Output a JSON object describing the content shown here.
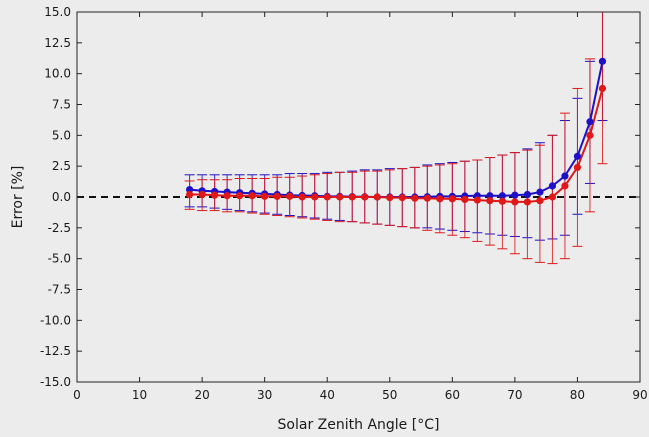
{
  "chart_data": {
    "type": "line",
    "title": "",
    "xlabel": "Solar Zenith Angle [°C]",
    "ylabel": "Error [%]",
    "xlim": [
      0,
      90
    ],
    "ylim": [
      -15,
      15
    ],
    "x_ticks": [
      0,
      10,
      20,
      30,
      40,
      50,
      60,
      70,
      80,
      90
    ],
    "y_ticks": [
      15,
      12.5,
      10,
      7.5,
      5,
      2.5,
      0,
      -2.5,
      -5,
      -7.5,
      -10,
      -12.5,
      -15
    ],
    "x_tick_labels": [
      "0",
      "10",
      "20",
      "30",
      "40",
      "50",
      "60",
      "70",
      "80",
      "90"
    ],
    "y_tick_labels": [
      "15.0",
      "12.5",
      "10.0",
      "7.5",
      "5.0",
      "2.5",
      "0.0",
      "-2.5",
      "-5.0",
      "-7.5",
      "-10.0",
      "-12.5",
      "-15.0"
    ],
    "grid": false,
    "reference_line": {
      "y": 0,
      "style": "dashed",
      "color": "#111111"
    },
    "x": [
      18,
      20,
      22,
      24,
      26,
      28,
      30,
      32,
      34,
      36,
      38,
      40,
      42,
      44,
      46,
      48,
      50,
      52,
      54,
      56,
      58,
      60,
      62,
      64,
      66,
      68,
      70,
      72,
      74,
      76,
      78,
      80,
      82,
      84
    ],
    "series": [
      {
        "color": "#1f10c8",
        "values": [
          0.6,
          0.5,
          0.45,
          0.4,
          0.35,
          0.3,
          0.25,
          0.2,
          0.15,
          0.12,
          0.1,
          0.05,
          0.05,
          0.03,
          0.02,
          0.0,
          0.0,
          0.0,
          0.0,
          0.02,
          0.05,
          0.05,
          0.08,
          0.1,
          0.1,
          0.1,
          0.15,
          0.2,
          0.4,
          0.9,
          1.7,
          3.3,
          6.1,
          11.0
        ],
        "err_low": [
          -0.8,
          -0.8,
          -0.9,
          -1.0,
          -1.1,
          -1.2,
          -1.3,
          -1.4,
          -1.5,
          -1.6,
          -1.7,
          -1.8,
          -1.9,
          -2.0,
          -2.1,
          -2.2,
          -2.3,
          -2.4,
          -2.5,
          -2.5,
          -2.6,
          -2.7,
          -2.8,
          -2.9,
          -3.0,
          -3.1,
          -3.2,
          -3.3,
          -3.5,
          -3.4,
          -3.1,
          -1.4,
          1.1,
          6.2
        ],
        "err_high": [
          1.8,
          1.8,
          1.8,
          1.8,
          1.8,
          1.8,
          1.8,
          1.8,
          1.9,
          1.9,
          1.9,
          2.0,
          2.0,
          2.1,
          2.2,
          2.2,
          2.3,
          2.3,
          2.4,
          2.6,
          2.7,
          2.8,
          2.9,
          3.0,
          3.2,
          3.4,
          3.6,
          3.9,
          4.4,
          5.0,
          6.2,
          8.0,
          11.0,
          15.0
        ]
      },
      {
        "color": "#e01818",
        "values": [
          0.2,
          0.2,
          0.15,
          0.1,
          0.1,
          0.1,
          0.05,
          0.05,
          0.05,
          0.0,
          0.0,
          0.0,
          0.0,
          0.0,
          0.0,
          0.0,
          -0.05,
          -0.05,
          -0.1,
          -0.1,
          -0.15,
          -0.15,
          -0.2,
          -0.25,
          -0.3,
          -0.35,
          -0.4,
          -0.4,
          -0.3,
          0.0,
          0.9,
          2.4,
          5.0,
          8.8
        ],
        "err_low": [
          -1.0,
          -1.1,
          -1.1,
          -1.2,
          -1.2,
          -1.3,
          -1.4,
          -1.5,
          -1.6,
          -1.7,
          -1.8,
          -1.9,
          -2.0,
          -2.0,
          -2.1,
          -2.2,
          -2.3,
          -2.4,
          -2.5,
          -2.7,
          -2.9,
          -3.1,
          -3.3,
          -3.6,
          -3.9,
          -4.2,
          -4.6,
          -5.0,
          -5.3,
          -5.4,
          -5.0,
          -4.0,
          -1.2,
          2.7
        ],
        "err_high": [
          1.3,
          1.4,
          1.4,
          1.4,
          1.5,
          1.5,
          1.5,
          1.6,
          1.6,
          1.7,
          1.8,
          1.9,
          2.0,
          2.0,
          2.1,
          2.1,
          2.2,
          2.3,
          2.4,
          2.5,
          2.6,
          2.7,
          2.9,
          3.0,
          3.2,
          3.4,
          3.6,
          3.8,
          4.2,
          5.0,
          6.8,
          8.8,
          11.2,
          15.0
        ]
      }
    ]
  }
}
